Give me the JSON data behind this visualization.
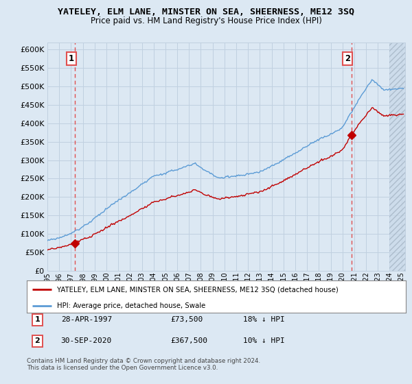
{
  "title": "YATELEY, ELM LANE, MINSTER ON SEA, SHEERNESS, ME12 3SQ",
  "subtitle": "Price paid vs. HM Land Registry's House Price Index (HPI)",
  "ylim": [
    0,
    620000
  ],
  "yticks": [
    0,
    50000,
    100000,
    150000,
    200000,
    250000,
    300000,
    350000,
    400000,
    450000,
    500000,
    550000,
    600000
  ],
  "xlim_start": 1995.0,
  "xlim_end": 2025.3,
  "hpi_color": "#5b9bd5",
  "price_color": "#c00000",
  "vline_color": "#e05050",
  "point1_x": 1997.32,
  "point1_y": 73500,
  "point2_x": 2020.75,
  "point2_y": 367500,
  "legend_line1": "YATELEY, ELM LANE, MINSTER ON SEA, SHEERNESS, ME12 3SQ (detached house)",
  "legend_line2": "HPI: Average price, detached house, Swale",
  "footer": "Contains HM Land Registry data © Crown copyright and database right 2024.\nThis data is licensed under the Open Government Licence v3.0.",
  "bg_color": "#dce8f3",
  "grid_color": "#c0d0e0"
}
